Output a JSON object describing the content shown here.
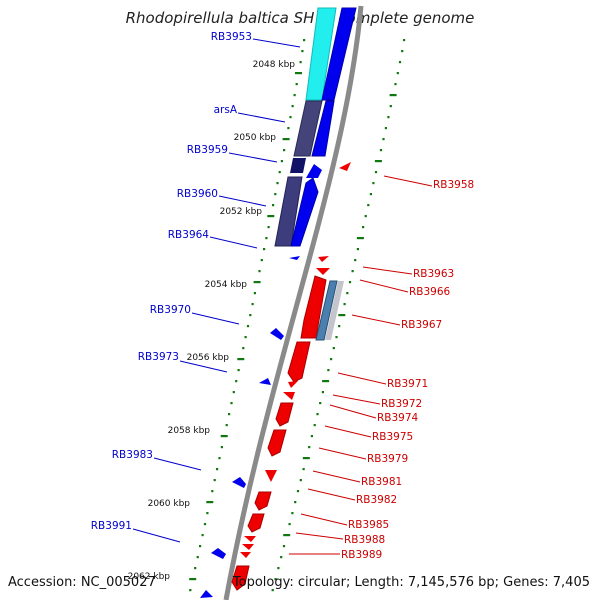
{
  "title": "Rhodopirellula baltica SH 1, complete genome",
  "footer": {
    "accession": "Accession: NC_005027",
    "summary": "Topology: circular; Length: 7,145,576 bp; Genes: 7,405"
  },
  "colors": {
    "backbone": "#8a8a8a",
    "forward_gene": "#0000ee",
    "reverse_gene": "#ee0000",
    "tick": "#117711",
    "label_blue": "#0000cc",
    "label_red": "#cc0000"
  },
  "kbp_labels": [
    "2048 kbp",
    "2050 kbp",
    "2052 kbp",
    "2054 kbp",
    "2056 kbp",
    "2058 kbp",
    "2060 kbp",
    "2062 kbp"
  ],
  "forward_labels": [
    "RB3953",
    "arsA",
    "RB3959",
    "RB3960",
    "RB3964",
    "RB3970",
    "RB3973",
    "RB3983",
    "RB3991"
  ],
  "reverse_labels": [
    "RB3958",
    "RB3963",
    "RB3966",
    "RB3967",
    "RB3971",
    "RB3972",
    "RB3974",
    "RB3975",
    "RB3979",
    "RB3981",
    "RB3982",
    "RB3985",
    "RB3988",
    "RB3989"
  ]
}
